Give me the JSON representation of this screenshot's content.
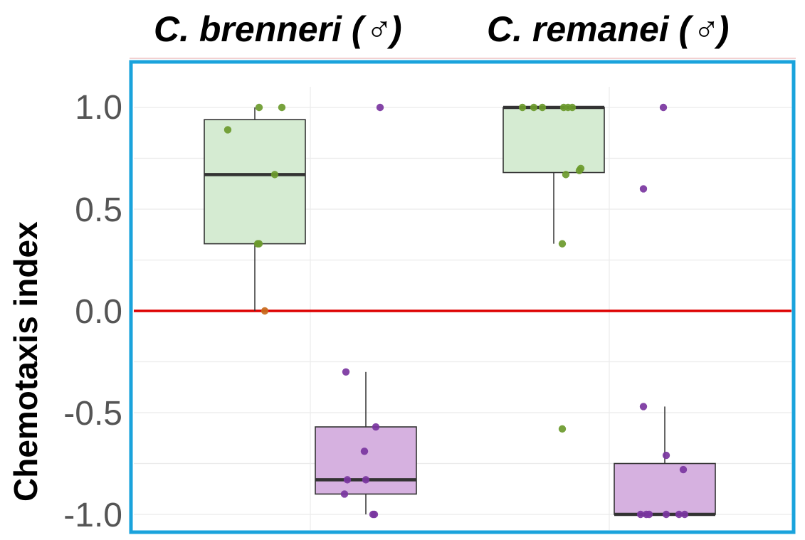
{
  "chart_data": {
    "type": "box",
    "titles": [
      "C. brenneri (♂)",
      "C. remanei (♂)"
    ],
    "ylabel": "Chemotaxis index",
    "ylim": [
      -1.0,
      1.0
    ],
    "yticks": [
      "1.0",
      "0.5",
      "0.0",
      "-0.5",
      "-1.0"
    ],
    "ytick_values": [
      1.0,
      0.5,
      0.0,
      -0.5,
      -1.0
    ],
    "grid": true,
    "reference_line": {
      "y": 0.0,
      "color": "#dd0000"
    },
    "frame_color": "#1aa3dc",
    "groups": [
      {
        "species": "C. brenneri (♂)",
        "color": "green",
        "box": {
          "q1": 0.33,
          "median": 0.67,
          "q3": 0.94,
          "whisker_low": 0.0,
          "whisker_high": 1.0
        },
        "points": [
          1.0,
          1.0,
          0.89,
          0.67,
          0.33,
          0.33,
          0.0
        ]
      },
      {
        "species": "C. brenneri (♂)",
        "color": "purple",
        "box": {
          "q1": -0.9,
          "median": -0.83,
          "q3": -0.57,
          "whisker_low": -1.0,
          "whisker_high": -0.3
        },
        "points": [
          1.0,
          -0.3,
          -0.57,
          -0.69,
          -0.83,
          -0.83,
          -0.9,
          -1.0,
          -1.0
        ]
      },
      {
        "species": "C. remanei (♂)",
        "color": "green",
        "box": {
          "q1": 0.68,
          "median": 1.0,
          "q3": 1.0,
          "whisker_low": 0.33,
          "whisker_high": 1.0
        },
        "points": [
          1.0,
          1.0,
          1.0,
          1.0,
          1.0,
          1.0,
          0.7,
          0.69,
          0.67,
          0.33,
          -0.58
        ]
      },
      {
        "species": "C. remanei (♂)",
        "color": "purple",
        "box": {
          "q1": -1.0,
          "median": -1.0,
          "q3": -0.75,
          "whisker_low": -1.0,
          "whisker_high": -0.47
        },
        "points": [
          1.0,
          0.6,
          -0.47,
          -0.71,
          -0.78,
          -1.0,
          -1.0,
          -1.0,
          -1.0,
          -1.0,
          -1.0
        ]
      }
    ],
    "colors": {
      "green_fill": "#d5ebd2",
      "green_point": "#6b9a2c",
      "purple_fill": "#d6b1e0",
      "purple_point": "#7a35a0",
      "zero_point": "#c8691a",
      "box_stroke": "#333333",
      "grid": "#ebebeb"
    }
  }
}
